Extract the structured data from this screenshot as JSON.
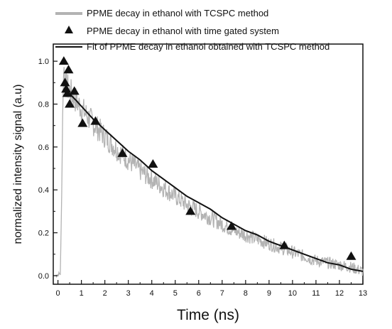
{
  "chart_data": {
    "type": "line",
    "xlabel": "Time (ns)",
    "ylabel": "normalized intensity signal (a.u)",
    "xlim": [
      -0.2,
      13
    ],
    "ylim": [
      -0.04,
      1.08
    ],
    "x_ticks": [
      "0",
      "1",
      "2",
      "3",
      "4",
      "5",
      "6",
      "7",
      "8",
      "9",
      "10",
      "11",
      "12",
      "13"
    ],
    "y_ticks": [
      "0.0",
      "0.2",
      "0.4",
      "0.6",
      "0.8",
      "1.0"
    ],
    "legend_position": "top",
    "series": [
      {
        "name": "PPME decay in ethanol with TCSPC method",
        "style": "noisy-line",
        "color": "#b3b3b3",
        "x": [
          -0.1,
          0.1,
          0.15,
          0.2,
          0.25,
          0.3,
          0.5,
          1,
          1.5,
          2,
          2.5,
          3,
          3.5,
          4,
          4.5,
          5,
          5.5,
          6,
          6.5,
          7,
          7.5,
          8,
          8.5,
          9,
          9.5,
          10,
          10.5,
          11,
          11.5,
          12,
          12.5,
          13
        ],
        "y": [
          0.0,
          0.01,
          0.3,
          0.75,
          0.98,
          0.9,
          0.86,
          0.78,
          0.71,
          0.65,
          0.59,
          0.54,
          0.49,
          0.45,
          0.41,
          0.37,
          0.33,
          0.3,
          0.27,
          0.24,
          0.21,
          0.19,
          0.17,
          0.15,
          0.13,
          0.11,
          0.09,
          0.07,
          0.06,
          0.05,
          0.04,
          0.02
        ]
      },
      {
        "name": "PPME decay in ethanol with time gated system",
        "style": "triangle-markers",
        "color": "#111111",
        "x": [
          0.25,
          0.3,
          0.35,
          0.4,
          0.45,
          0.5,
          0.7,
          1.05,
          1.6,
          2.75,
          4.05,
          5.65,
          7.4,
          9.65,
          12.5
        ],
        "y": [
          1.0,
          0.9,
          0.87,
          0.85,
          0.96,
          0.8,
          0.86,
          0.71,
          0.72,
          0.57,
          0.52,
          0.3,
          0.23,
          0.14,
          0.09
        ]
      },
      {
        "name": "Fit of PPME decay in ethanol obtained with TCSPC method",
        "style": "line",
        "color": "#111111",
        "x": [
          0.4,
          0.75,
          1,
          1.5,
          2,
          2.5,
          3,
          3.5,
          4,
          4.5,
          5,
          5.5,
          6,
          6.5,
          7,
          7.5,
          8,
          8.5,
          9,
          9.5,
          10,
          10.5,
          11,
          11.5,
          12,
          12.5,
          13
        ],
        "y": [
          0.86,
          0.82,
          0.79,
          0.73,
          0.68,
          0.63,
          0.58,
          0.54,
          0.49,
          0.45,
          0.41,
          0.37,
          0.34,
          0.31,
          0.27,
          0.24,
          0.21,
          0.19,
          0.16,
          0.14,
          0.12,
          0.1,
          0.08,
          0.06,
          0.05,
          0.03,
          0.02
        ]
      }
    ]
  }
}
